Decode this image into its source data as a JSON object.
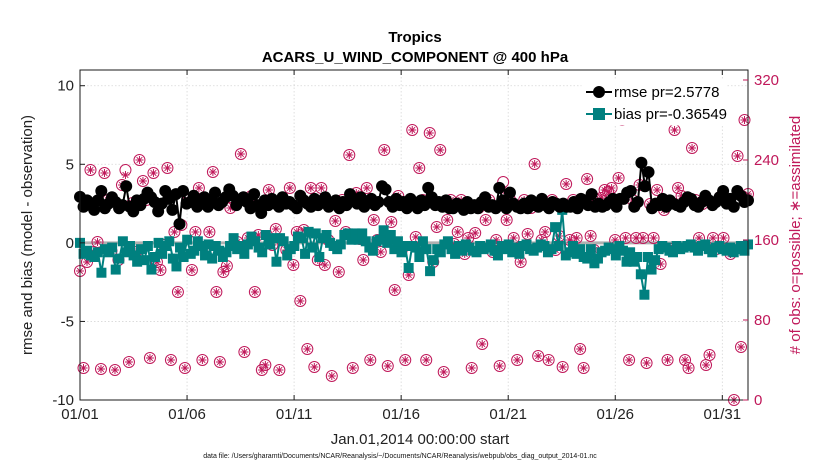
{
  "chart_data": {
    "type": "line",
    "title": "Tropics",
    "subtitle": "ACARS_U_WIND_COMPONENT @ 400 hPa",
    "xlabel": "Jan.01,2014 00:00:00 start",
    "ylabel": "rmse and bias (model - observation)",
    "ylabel_right": "# of obs: o=possible; ∗=assimilated",
    "ylim": [
      -10,
      11
    ],
    "ylim_right": [
      0,
      330
    ],
    "xlim": [
      1,
      32.2
    ],
    "xticks": [
      1,
      6,
      11,
      16,
      21,
      26,
      31
    ],
    "xtick_labels": [
      "01/01",
      "01/06",
      "01/11",
      "01/16",
      "01/21",
      "01/26",
      "01/31"
    ],
    "yticks": [
      -10,
      -5,
      0,
      5,
      10
    ],
    "yticks_right": [
      0,
      80,
      160,
      240,
      320
    ],
    "grid": true,
    "legend_position": "top-right",
    "footer": "data file: /Users/gharamti/Documents/NCAR/Reanalysis/~/Documents/NCAR/Reanalysis/webpub/obs_diag_output_2014-01.nc",
    "colors": {
      "rmse": "#000000",
      "bias": "#00807f",
      "obs": "#c0185a",
      "zero_line": "#b0b0b0"
    },
    "series": [
      {
        "name": "rmse pr=2.5778",
        "axis": "left",
        "marker": "circle",
        "values": [
          2.93,
          2.3,
          2.7,
          2.4,
          2.1,
          2.7,
          3.3,
          2.2,
          2.5,
          2.9,
          2.6,
          2.2,
          2.4,
          3.6,
          2.3,
          2.0,
          2.7,
          2.4,
          2.8,
          3.2,
          2.9,
          2.6,
          2.0,
          2.5,
          3.3,
          2.8,
          2.1,
          3.1,
          1.2,
          3.3,
          2.5,
          2.6,
          3.0,
          2.3,
          2.6,
          2.9,
          2.3,
          2.7,
          3.2,
          2.4,
          2.6,
          2.9,
          3.4,
          3.0,
          2.4,
          2.7,
          2.9,
          2.6,
          2.2,
          3.1,
          2.4,
          1.9,
          2.7,
          2.4,
          2.8,
          2.5,
          2.3,
          2.9,
          2.5,
          2.6,
          2.4,
          2.2,
          3.0,
          2.7,
          2.5,
          2.3,
          2.8,
          2.4,
          2.6,
          2.9,
          2.3,
          2.5,
          2.7,
          2.2,
          2.6,
          2.4,
          3.1,
          2.7,
          2.5,
          2.9,
          2.3,
          2.6,
          2.8,
          2.4,
          2.6,
          3.6,
          3.4,
          2.6,
          2.3,
          2.8,
          2.4,
          2.6,
          2.2,
          2.8,
          2.5,
          2.2,
          2.7,
          2.4,
          3.5,
          2.9,
          2.4,
          2.6,
          2.3,
          2.7,
          2.2,
          2.2,
          2.5,
          2.4,
          2.1,
          2.6,
          2.2,
          2.4,
          2.2,
          2.6,
          2.9,
          2.3,
          2.4,
          2.2,
          3.5,
          2.7,
          2.2,
          3.2,
          2.5,
          2.3,
          2.2,
          2.5,
          2.2,
          2.7,
          2.4,
          2.3,
          2.8,
          2.4,
          2.2,
          2.6,
          2.5,
          2.3,
          2.5,
          2.3,
          2.3,
          2.6,
          2.2,
          2.8,
          2.7,
          2.4,
          3.1,
          2.3,
          2.5,
          2.3,
          2.4,
          2.6,
          2.8,
          2.3,
          2.8,
          2.8,
          3.2,
          3.3,
          2.3,
          2.6,
          5.1,
          3.6,
          4.5,
          2.2,
          2.5,
          2.4,
          2.8,
          2.3,
          2.7,
          2.5,
          2.4,
          2.3,
          2.6,
          2.9,
          2.8,
          2.4,
          2.3,
          2.6,
          3.0,
          2.7,
          2.4,
          2.6,
          2.9,
          3.3,
          2.5,
          2.8,
          2.3,
          3.3,
          3.0,
          2.6,
          2.7
        ]
      },
      {
        "name": "bias pr=-0.36549",
        "axis": "left",
        "marker": "square",
        "values": [
          0.0,
          -0.7,
          -0.5,
          -0.8,
          -0.9,
          -0.6,
          -1.9,
          -0.4,
          -0.6,
          -0.3,
          -1.7,
          -1.0,
          0.1,
          -0.6,
          -0.2,
          -0.8,
          -1.2,
          -0.4,
          -1.1,
          -0.2,
          -1.7,
          -0.9,
          0.0,
          -0.7,
          -0.2,
          0.1,
          -1.0,
          -1.5,
          -0.3,
          -0.9,
          0.2,
          -0.7,
          -0.5,
          0.1,
          -0.2,
          -0.8,
          -0.1,
          -1.0,
          -0.2,
          -0.5,
          -0.9,
          -0.6,
          -0.2,
          0.3,
          -0.4,
          -0.2,
          -0.7,
          -0.1,
          0.4,
          0.1,
          -0.3,
          -0.6,
          0.5,
          -0.1,
          0.3,
          -1.2,
          0.3,
          0.1,
          -0.8,
          -0.4,
          -0.2,
          0.4,
          0.3,
          -0.7,
          0.7,
          -0.3,
          0.6,
          -0.9,
          0.3,
          0.5,
          0.0,
          -0.2,
          -0.4,
          -0.1,
          0.5,
          0.6,
          0.2,
          0.6,
          0.2,
          0.6,
          0.1,
          -0.3,
          -0.5,
          0.1,
          0.2,
          0.8,
          0.0,
          0.5,
          -0.4,
          0.1,
          -0.6,
          -0.2,
          -1.6,
          -0.2,
          -0.3,
          -0.9,
          0.1,
          -0.4,
          -1.8,
          -1.1,
          -0.4,
          -0.6,
          -0.1,
          0.1,
          -0.4,
          -0.7,
          -0.2,
          -0.5,
          -0.1,
          -0.3,
          -0.5,
          -0.6,
          -0.2,
          -0.4,
          -0.3,
          -0.1,
          -0.5,
          -0.8,
          -0.2,
          -0.4,
          -0.1,
          -0.6,
          -0.3,
          -0.7,
          -0.2,
          -0.1,
          -0.4,
          -0.5,
          -0.3,
          -0.1,
          -0.2,
          -0.6,
          -0.4,
          1.0,
          -0.2,
          2.1,
          -0.8,
          -0.6,
          -0.2,
          -0.7,
          -0.4,
          -0.9,
          -1.0,
          -0.4,
          -1.3,
          -1.0,
          -0.6,
          -0.5,
          -0.3,
          -0.4,
          -0.8,
          -0.2,
          -0.5,
          -1.2,
          -0.6,
          -1.2,
          -0.9,
          -2.0,
          -3.3,
          -0.9,
          -1.7,
          -1.1,
          -0.4,
          -0.2,
          -0.3,
          -0.5,
          -0.6,
          -0.2,
          -0.4,
          -0.3,
          -0.2,
          -0.1,
          -0.3,
          -0.5,
          -0.2,
          -0.1,
          -0.4,
          -0.6,
          -0.3,
          -0.2,
          -0.4,
          -0.5,
          -0.3,
          -0.6,
          -0.4,
          -0.2,
          -0.5,
          -0.1
        ]
      },
      {
        "name": "obs possible",
        "axis": "right",
        "marker": "circle-open",
        "values": [
          129,
          32,
          138,
          230,
          148,
          158,
          31,
          227,
          200,
          149,
          30,
          140,
          215,
          230,
          38,
          197,
          148,
          240,
          219,
          200,
          42,
          227,
          138,
          130,
          155,
          232,
          40,
          168,
          108,
          175,
          32,
          200,
          130,
          168,
          212,
          40,
          151,
          168,
          228,
          108,
          38,
          128,
          134,
          192,
          200,
          158,
          246,
          48,
          162,
          204,
          108,
          165,
          30,
          35,
          210,
          155,
          171,
          30,
          200,
          150,
          212,
          135,
          168,
          99,
          170,
          51,
          212,
          33,
          140,
          212,
          135,
          160,
          24,
          179,
          128,
          200,
          168,
          245,
          32,
          207,
          161,
          140,
          212,
          40,
          180,
          160,
          148,
          250,
          34,
          178,
          110,
          204,
          150,
          40,
          125,
          270,
          163,
          232,
          200,
          40,
          267,
          138,
          173,
          250,
          28,
          180,
          200,
          156,
          168,
          200,
          146,
          162,
          32,
          167,
          192,
          56,
          180,
          200,
          148,
          160,
          34,
          218,
          180,
          200,
          162,
          40,
          138,
          200,
          166,
          192,
          236,
          44,
          160,
          168,
          40,
          200,
          150,
          164,
          33,
          216,
          160,
          200,
          162,
          51,
          32,
          221,
          164,
          150,
          200,
          202,
          210,
          208,
          212,
          160,
          222,
          280,
          162,
          40,
          200,
          162,
          215,
          162,
          37,
          196,
          162,
          210,
          136,
          190,
          40,
          151,
          270,
          212,
          204,
          40,
          32,
          252,
          200,
          162,
          196,
          35,
          45,
          162,
          151,
          203,
          162,
          200,
          146,
          0,
          244,
          53,
          280,
          206
        ]
      },
      {
        "name": "obs assimilated",
        "axis": "right",
        "marker": "asterisk",
        "values": [
          129,
          32,
          138,
          230,
          148,
          158,
          31,
          227,
          200,
          149,
          30,
          140,
          215,
          225,
          38,
          197,
          148,
          240,
          219,
          200,
          42,
          227,
          138,
          130,
          155,
          232,
          40,
          168,
          108,
          175,
          32,
          200,
          130,
          168,
          212,
          40,
          151,
          168,
          228,
          108,
          38,
          128,
          134,
          192,
          200,
          158,
          246,
          48,
          162,
          204,
          108,
          165,
          30,
          35,
          210,
          155,
          171,
          30,
          200,
          150,
          212,
          135,
          168,
          99,
          170,
          51,
          212,
          33,
          140,
          212,
          135,
          160,
          24,
          179,
          128,
          200,
          168,
          245,
          32,
          207,
          161,
          140,
          212,
          40,
          180,
          160,
          148,
          250,
          34,
          178,
          110,
          204,
          150,
          40,
          125,
          270,
          163,
          232,
          200,
          40,
          267,
          138,
          173,
          250,
          28,
          180,
          200,
          156,
          168,
          200,
          146,
          162,
          32,
          167,
          192,
          56,
          180,
          200,
          148,
          160,
          34,
          210,
          180,
          200,
          162,
          40,
          138,
          200,
          166,
          192,
          236,
          44,
          160,
          168,
          40,
          200,
          150,
          164,
          33,
          216,
          160,
          200,
          162,
          51,
          32,
          221,
          164,
          150,
          200,
          202,
          210,
          208,
          212,
          160,
          222,
          280,
          162,
          40,
          200,
          162,
          215,
          162,
          37,
          196,
          162,
          210,
          136,
          190,
          40,
          151,
          270,
          212,
          204,
          40,
          32,
          252,
          200,
          162,
          196,
          35,
          45,
          162,
          151,
          203,
          162,
          200,
          146,
          0,
          244,
          53,
          280,
          206
        ]
      }
    ]
  }
}
